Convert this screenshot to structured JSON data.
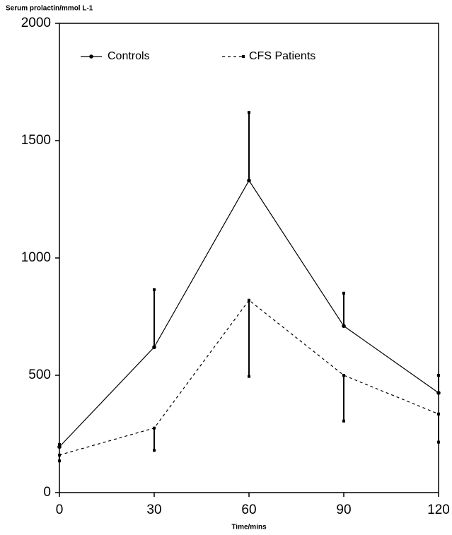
{
  "chart_data": {
    "type": "line",
    "y_label": "Serum prolactin/mmol L-1",
    "x_label": "Time/mins",
    "x": [
      0,
      30,
      60,
      90,
      120
    ],
    "xlim": [
      0,
      120
    ],
    "xticks": [
      0,
      30,
      60,
      90,
      120
    ],
    "ylim": [
      0,
      2000
    ],
    "yticks": [
      0,
      500,
      1000,
      1500,
      2000
    ],
    "legend": "top-left",
    "series": [
      {
        "name": "Controls",
        "color": "#000000",
        "dash": false,
        "error_side": "up",
        "values": [
          195,
          620,
          1330,
          710,
          425
        ],
        "errors": [
          10,
          245,
          290,
          140,
          75
        ]
      },
      {
        "name": "CFS Patients",
        "color": "#000000",
        "dash": true,
        "error_side": "down",
        "values": [
          160,
          275,
          820,
          500,
          335
        ],
        "errors": [
          25,
          95,
          325,
          195,
          120
        ]
      }
    ]
  }
}
